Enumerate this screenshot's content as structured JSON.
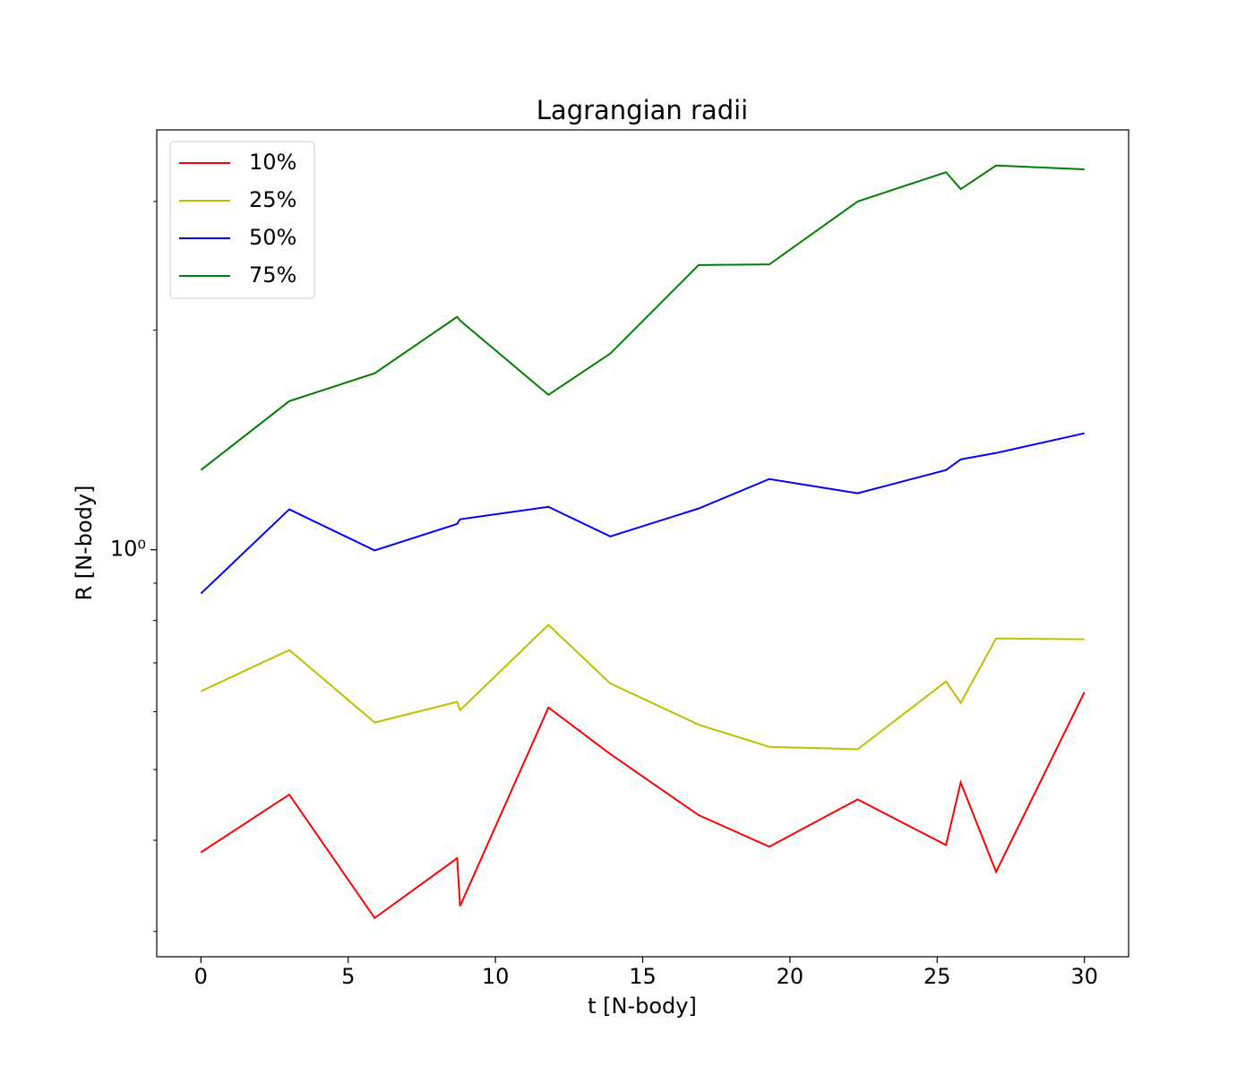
{
  "chart_data": {
    "type": "line",
    "title": "Lagrangian radii",
    "xlabel": "t [N-body]",
    "ylabel": "R [N-body]",
    "x": [
      0,
      3,
      5.9,
      8.7,
      8.8,
      11.8,
      13.9,
      16.9,
      19.3,
      22.3,
      25.3,
      25.8,
      27,
      30
    ],
    "series": [
      {
        "name": "10%",
        "color": "#ff0000",
        "values": [
          0.385,
          0.462,
          0.313,
          0.378,
          0.325,
          0.608,
          0.525,
          0.433,
          0.392,
          0.455,
          0.394,
          0.48,
          0.362,
          0.638
        ]
      },
      {
        "name": "25%",
        "color": "#bfbf00",
        "values": [
          0.64,
          0.729,
          0.58,
          0.619,
          0.603,
          0.789,
          0.656,
          0.576,
          0.537,
          0.533,
          0.66,
          0.617,
          0.756,
          0.754
        ]
      },
      {
        "name": "50%",
        "color": "#0000ff",
        "values": [
          0.871,
          1.136,
          0.998,
          1.085,
          1.101,
          1.145,
          1.043,
          1.139,
          1.25,
          1.195,
          1.286,
          1.33,
          1.357,
          1.444
        ]
      },
      {
        "name": "75%",
        "color": "#008000",
        "values": [
          1.286,
          1.598,
          1.745,
          2.085,
          2.061,
          1.63,
          1.857,
          2.455,
          2.46,
          3.0,
          3.29,
          3.12,
          3.36,
          3.32
        ]
      }
    ],
    "xlim": [
      -1.5,
      31.5
    ],
    "xticks": [
      0,
      5,
      10,
      15,
      20,
      25,
      30
    ],
    "ylim": [
      0.277,
      3.76
    ],
    "yscale": "log",
    "yticks": [
      {
        "value": 1,
        "label": "10⁰"
      }
    ],
    "yminorticks": [
      0.3,
      0.4,
      0.5,
      0.6,
      0.7,
      0.8,
      0.9,
      2,
      3
    ],
    "legend": "upper left"
  }
}
